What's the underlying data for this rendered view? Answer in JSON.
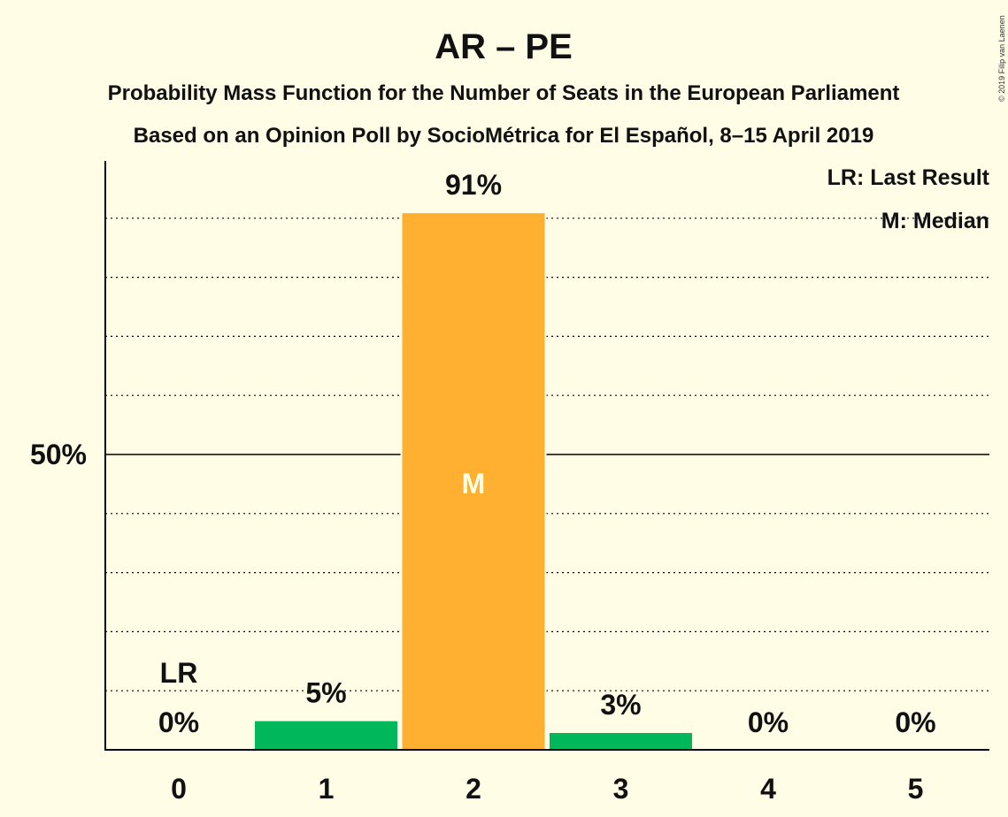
{
  "title": "AR – PE",
  "subtitle1": "Probability Mass Function for the Number of Seats in the European Parliament",
  "subtitle2": "Based on an Opinion Poll by SocioMétrica for El Español, 8–15 April 2019",
  "copyright": "© 2019 Filip van Laenen",
  "legend": {
    "last_result": "LR: Last Result",
    "median": "M: Median"
  },
  "chart_data": {
    "type": "bar",
    "categories": [
      "0",
      "1",
      "2",
      "3",
      "4",
      "5"
    ],
    "values": [
      0,
      5,
      91,
      3,
      0,
      0
    ],
    "value_labels": [
      "0%",
      "5%",
      "91%",
      "3%",
      "0%",
      "0%"
    ],
    "ylim": [
      0,
      100
    ],
    "ytick_value": 50,
    "ytick_label": "50%",
    "gridlines": [
      10,
      20,
      30,
      40,
      50,
      60,
      70,
      80,
      90
    ],
    "median_index": 2,
    "median_label": "M",
    "last_result_index": 0,
    "last_result_label": "LR",
    "colors": {
      "bar": "#00B85C",
      "median_bar": "#FFB030",
      "background": "#FFFDE6",
      "text": "#111111"
    }
  }
}
